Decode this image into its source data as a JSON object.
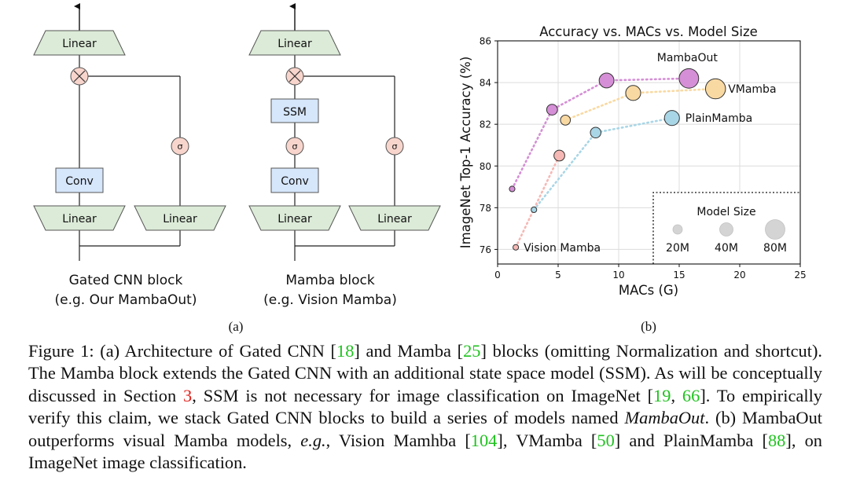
{
  "diagram": {
    "gated_cnn": {
      "linear_top": "Linear",
      "multiply_symbol": "⊗",
      "sigma_symbol": "σ",
      "conv": "Conv",
      "linear_left": "Linear",
      "linear_right": "Linear",
      "title": "Gated CNN block",
      "subtitle": "(e.g. Our MambaOut)"
    },
    "mamba": {
      "linear_top": "Linear",
      "multiply_symbol": "⊗",
      "ssm": "SSM",
      "sigma_symbol": "σ",
      "conv": "Conv",
      "linear_left": "Linear",
      "linear_right": "Linear",
      "title": "Mamba block",
      "subtitle": "(e.g. Vision Mamba)"
    },
    "panel_label": "(a)",
    "colors": {
      "linear_fill": "#dcebd8",
      "conv_fill": "#d6e6fb",
      "gate_fill": "#f8d5cc"
    }
  },
  "chart_data": {
    "type": "scatter",
    "title": "Accuracy vs. MACs vs. Model Size",
    "xlabel": "MACs (G)",
    "ylabel": "ImageNet Top-1 Accuracy (%)",
    "xlim": [
      0,
      25
    ],
    "ylim": [
      75.3,
      86
    ],
    "xticks": [
      0,
      5,
      10,
      15,
      20,
      25
    ],
    "yticks": [
      76,
      78,
      80,
      82,
      84,
      86
    ],
    "grid": true,
    "series": [
      {
        "name": "MambaOut",
        "color": "#d58fd6",
        "points": [
          {
            "x": 1.2,
            "y": 78.9,
            "size": 7
          },
          {
            "x": 4.5,
            "y": 82.7,
            "size": 26
          },
          {
            "x": 9.0,
            "y": 84.1,
            "size": 49
          },
          {
            "x": 15.8,
            "y": 84.2,
            "size": 85
          }
        ]
      },
      {
        "name": "VMamba",
        "color": "#f9d9a2",
        "points": [
          {
            "x": 5.6,
            "y": 82.2,
            "size": 22
          },
          {
            "x": 11.2,
            "y": 83.5,
            "size": 50
          },
          {
            "x": 18.0,
            "y": 83.7,
            "size": 89
          }
        ]
      },
      {
        "name": "PlainMamba",
        "color": "#a9d6e6",
        "points": [
          {
            "x": 3.0,
            "y": 77.9,
            "size": 7
          },
          {
            "x": 8.1,
            "y": 81.6,
            "size": 25
          },
          {
            "x": 14.4,
            "y": 82.3,
            "size": 50
          }
        ]
      },
      {
        "name": "Vision Mamba",
        "color": "#f6b8b4",
        "points": [
          {
            "x": 1.5,
            "y": 76.1,
            "size": 7
          },
          {
            "x": 5.1,
            "y": 80.5,
            "size": 26
          }
        ]
      }
    ],
    "legend": {
      "title": "Model Size",
      "placement": "lower-right",
      "items": [
        "20M",
        "40M",
        "80M"
      ]
    },
    "panel_label": "(b)"
  },
  "caption": {
    "p1": "Figure 1: (a) Architecture of Gated CNN [",
    "r1": "18",
    "p2": "] and Mamba [",
    "r2": "25",
    "p3": "] blocks (omitting Normalization and shortcut). The Mamba block extends the Gated CNN with an additional state space model (SSM). As will be conceptually discussed in Section ",
    "r3": "3",
    "p4": ", SSM is not necessary for image classification on ImageNet [",
    "r4": "19",
    "p5": ", ",
    "r5": "66",
    "p6": "]. To empirically verify this claim, we stack Gated CNN blocks to build a series of models named ",
    "i1": "MambaOut",
    "p7": ". (b) MambaOut outperforms visual Mamba models, ",
    "i2": "e.g.",
    "p8": ", Vision Mamhba [",
    "r6": "104",
    "p9": "], VMamba [",
    "r7": "50",
    "p10": "] and PlainMamba [",
    "r8": "88",
    "p11": "], on ImageNet image classification."
  }
}
